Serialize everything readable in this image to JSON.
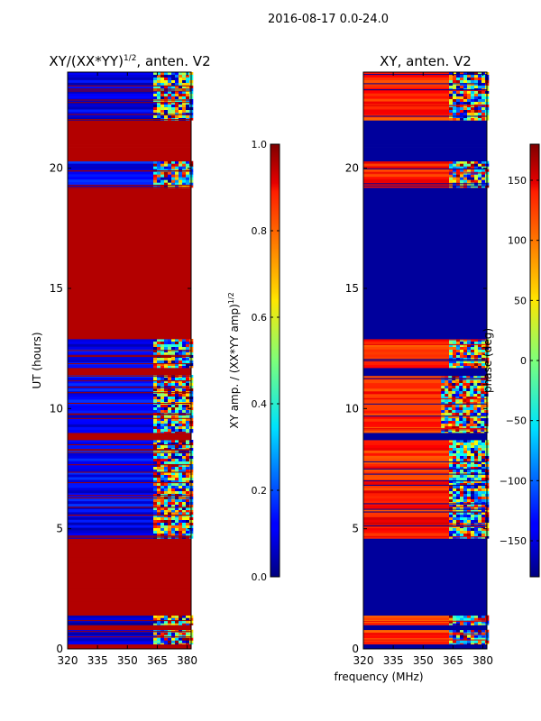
{
  "figure": {
    "suptitle": "2016-08-17 0.0-24.0",
    "shared_xlabel": "frequency (MHz)"
  },
  "chart_data": [
    {
      "type": "heatmap",
      "title_main": "XY/(XX*YY)",
      "title_exp": "1/2",
      "title_tail": ", anten. V2",
      "ylabel": "UT (hours)",
      "xlim": [
        320,
        382
      ],
      "ylim": [
        0,
        24
      ],
      "xticks": [
        320,
        335,
        350,
        365,
        380
      ],
      "yticks": [
        0,
        5,
        10,
        15,
        20
      ],
      "colorbar": {
        "label_main": "XY amp. / (XX*YY amp)",
        "label_exp": "1/2",
        "range": [
          0.0,
          1.0
        ],
        "ticks": [
          "0.0",
          "0.2",
          "0.4",
          "0.6",
          "0.8",
          "1.0"
        ],
        "tick_values": [
          0.0,
          0.2,
          0.4,
          0.6,
          0.8,
          1.0
        ]
      },
      "bands": [
        {
          "y0": 0.0,
          "y1": 0.2,
          "value": 0.95
        },
        {
          "y0": 0.2,
          "y1": 0.8,
          "value": 0.08,
          "rfi_from": 363
        },
        {
          "y0": 0.8,
          "y1": 1.0,
          "value": 0.95
        },
        {
          "y0": 1.0,
          "y1": 1.4,
          "value": 0.08,
          "rfi_from": 363
        },
        {
          "y0": 1.4,
          "y1": 4.6,
          "value": 0.95
        },
        {
          "y0": 4.6,
          "y1": 5.7,
          "value": 0.1,
          "rfi_from": 363
        },
        {
          "y0": 5.7,
          "y1": 8.7,
          "value": 0.12,
          "rfi_from": 363
        },
        {
          "y0": 8.7,
          "y1": 9.0,
          "value": 0.95
        },
        {
          "y0": 9.0,
          "y1": 11.4,
          "value": 0.12,
          "rfi_from": 363
        },
        {
          "y0": 11.4,
          "y1": 11.7,
          "value": 0.95
        },
        {
          "y0": 11.7,
          "y1": 12.9,
          "value": 0.1,
          "rfi_from": 363
        },
        {
          "y0": 12.9,
          "y1": 19.2,
          "value": 0.95
        },
        {
          "y0": 19.2,
          "y1": 20.3,
          "value": 0.12,
          "rfi_from": 363
        },
        {
          "y0": 20.3,
          "y1": 22.0,
          "value": 0.95
        },
        {
          "y0": 22.0,
          "y1": 24.0,
          "value": 0.1,
          "rfi_from": 363
        }
      ]
    },
    {
      "type": "heatmap",
      "title_main": "XY, anten. V2",
      "ylabel": "",
      "xlim": [
        320,
        382
      ],
      "ylim": [
        0,
        24
      ],
      "xticks": [
        320,
        335,
        350,
        365,
        380
      ],
      "yticks": [
        0,
        5,
        10,
        15,
        20
      ],
      "colorbar": {
        "label_main": "phase (deg)",
        "range": [
          -180,
          180
        ],
        "ticks": [
          "150",
          "100",
          "50",
          "0",
          "−50",
          "−100",
          "−150"
        ],
        "tick_values": [
          150,
          100,
          50,
          0,
          -50,
          -100,
          -150
        ]
      },
      "bands": [
        {
          "y0": 0.0,
          "y1": 0.2,
          "value": -170
        },
        {
          "y0": 0.2,
          "y1": 0.8,
          "value": 120,
          "rfi_from": 363
        },
        {
          "y0": 0.8,
          "y1": 1.0,
          "value": -170
        },
        {
          "y0": 1.0,
          "y1": 1.4,
          "value": 110,
          "rfi_from": 363
        },
        {
          "y0": 1.4,
          "y1": 4.6,
          "value": -170
        },
        {
          "y0": 4.6,
          "y1": 5.7,
          "value": 130,
          "rfi_from": 363
        },
        {
          "y0": 5.7,
          "y1": 8.7,
          "value": 125,
          "rfi_from": 363
        },
        {
          "y0": 8.7,
          "y1": 9.0,
          "value": -170
        },
        {
          "y0": 9.0,
          "y1": 11.4,
          "value": 120,
          "rfi_from": 359
        },
        {
          "y0": 11.4,
          "y1": 11.7,
          "value": -170
        },
        {
          "y0": 11.7,
          "y1": 12.9,
          "value": 115,
          "rfi_from": 363
        },
        {
          "y0": 12.9,
          "y1": 19.2,
          "value": -170
        },
        {
          "y0": 19.2,
          "y1": 20.3,
          "value": 130,
          "rfi_from": 363
        },
        {
          "y0": 20.3,
          "y1": 22.0,
          "value": -170
        },
        {
          "y0": 22.0,
          "y1": 24.0,
          "value": 120,
          "rfi_from": 363
        }
      ]
    }
  ]
}
